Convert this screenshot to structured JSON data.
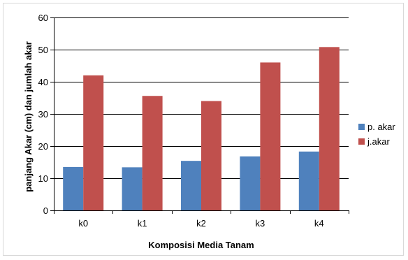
{
  "chart_data": {
    "type": "bar",
    "categories": [
      "k0",
      "k1",
      "k2",
      "k3",
      "k4"
    ],
    "series": [
      {
        "name": "p. akar",
        "values": [
          13.5,
          13.4,
          15.4,
          16.8,
          18.3
        ],
        "color": "#4f81bd"
      },
      {
        "name": "j.akar",
        "values": [
          42.0,
          35.6,
          34.0,
          46.0,
          50.8
        ],
        "color": "#c0504d"
      }
    ],
    "title": "",
    "xlabel": "Komposisi Media Tanam",
    "ylabel": "panjang Akar (cm)  dan jumlah akar",
    "ylim": [
      0,
      60
    ],
    "yticks": [
      0,
      10,
      20,
      30,
      40,
      50,
      60
    ],
    "grid": true,
    "legend": "right"
  }
}
